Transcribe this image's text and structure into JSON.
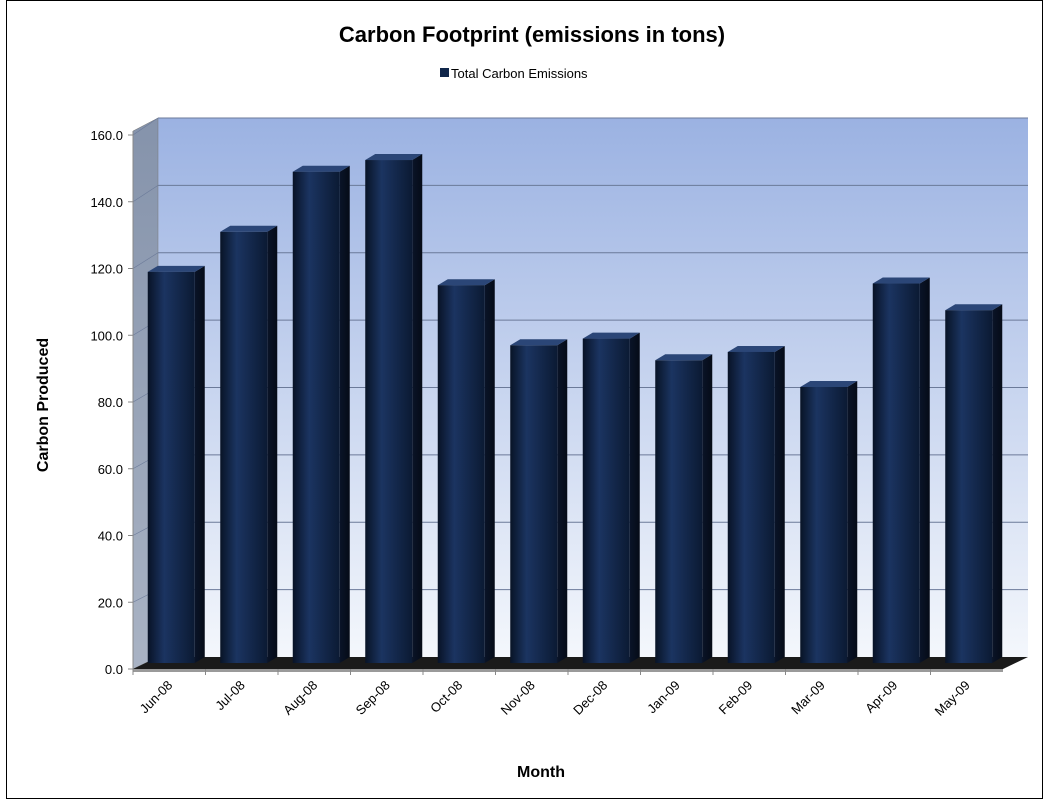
{
  "chart_data": {
    "type": "bar",
    "title": "Carbon Footprint (emissions in tons)",
    "xlabel": "Month",
    "ylabel": "Carbon Produced",
    "legend": [
      "Total Carbon Emissions"
    ],
    "legend_position": "top",
    "categories": [
      "Jun-08",
      "Jul-08",
      "Aug-08",
      "Sep-08",
      "Oct-08",
      "Nov-08",
      "Dec-08",
      "Jan-09",
      "Feb-09",
      "Mar-09",
      "Apr-09",
      "May-09"
    ],
    "series": [
      {
        "name": "Total Carbon Emissions",
        "values": [
          119.0,
          131.0,
          149.0,
          152.5,
          115.0,
          97.0,
          99.0,
          92.5,
          95.0,
          84.5,
          115.5,
          107.5
        ]
      }
    ],
    "ylim": [
      0,
      160
    ],
    "yticks": [
      "0.0",
      "20.0",
      "40.0",
      "60.0",
      "80.0",
      "100.0",
      "120.0",
      "140.0",
      "160.0"
    ],
    "grid": true,
    "bar_color": "#10264a",
    "background_gradient": [
      "#9db3e3",
      "#ffffff"
    ]
  }
}
